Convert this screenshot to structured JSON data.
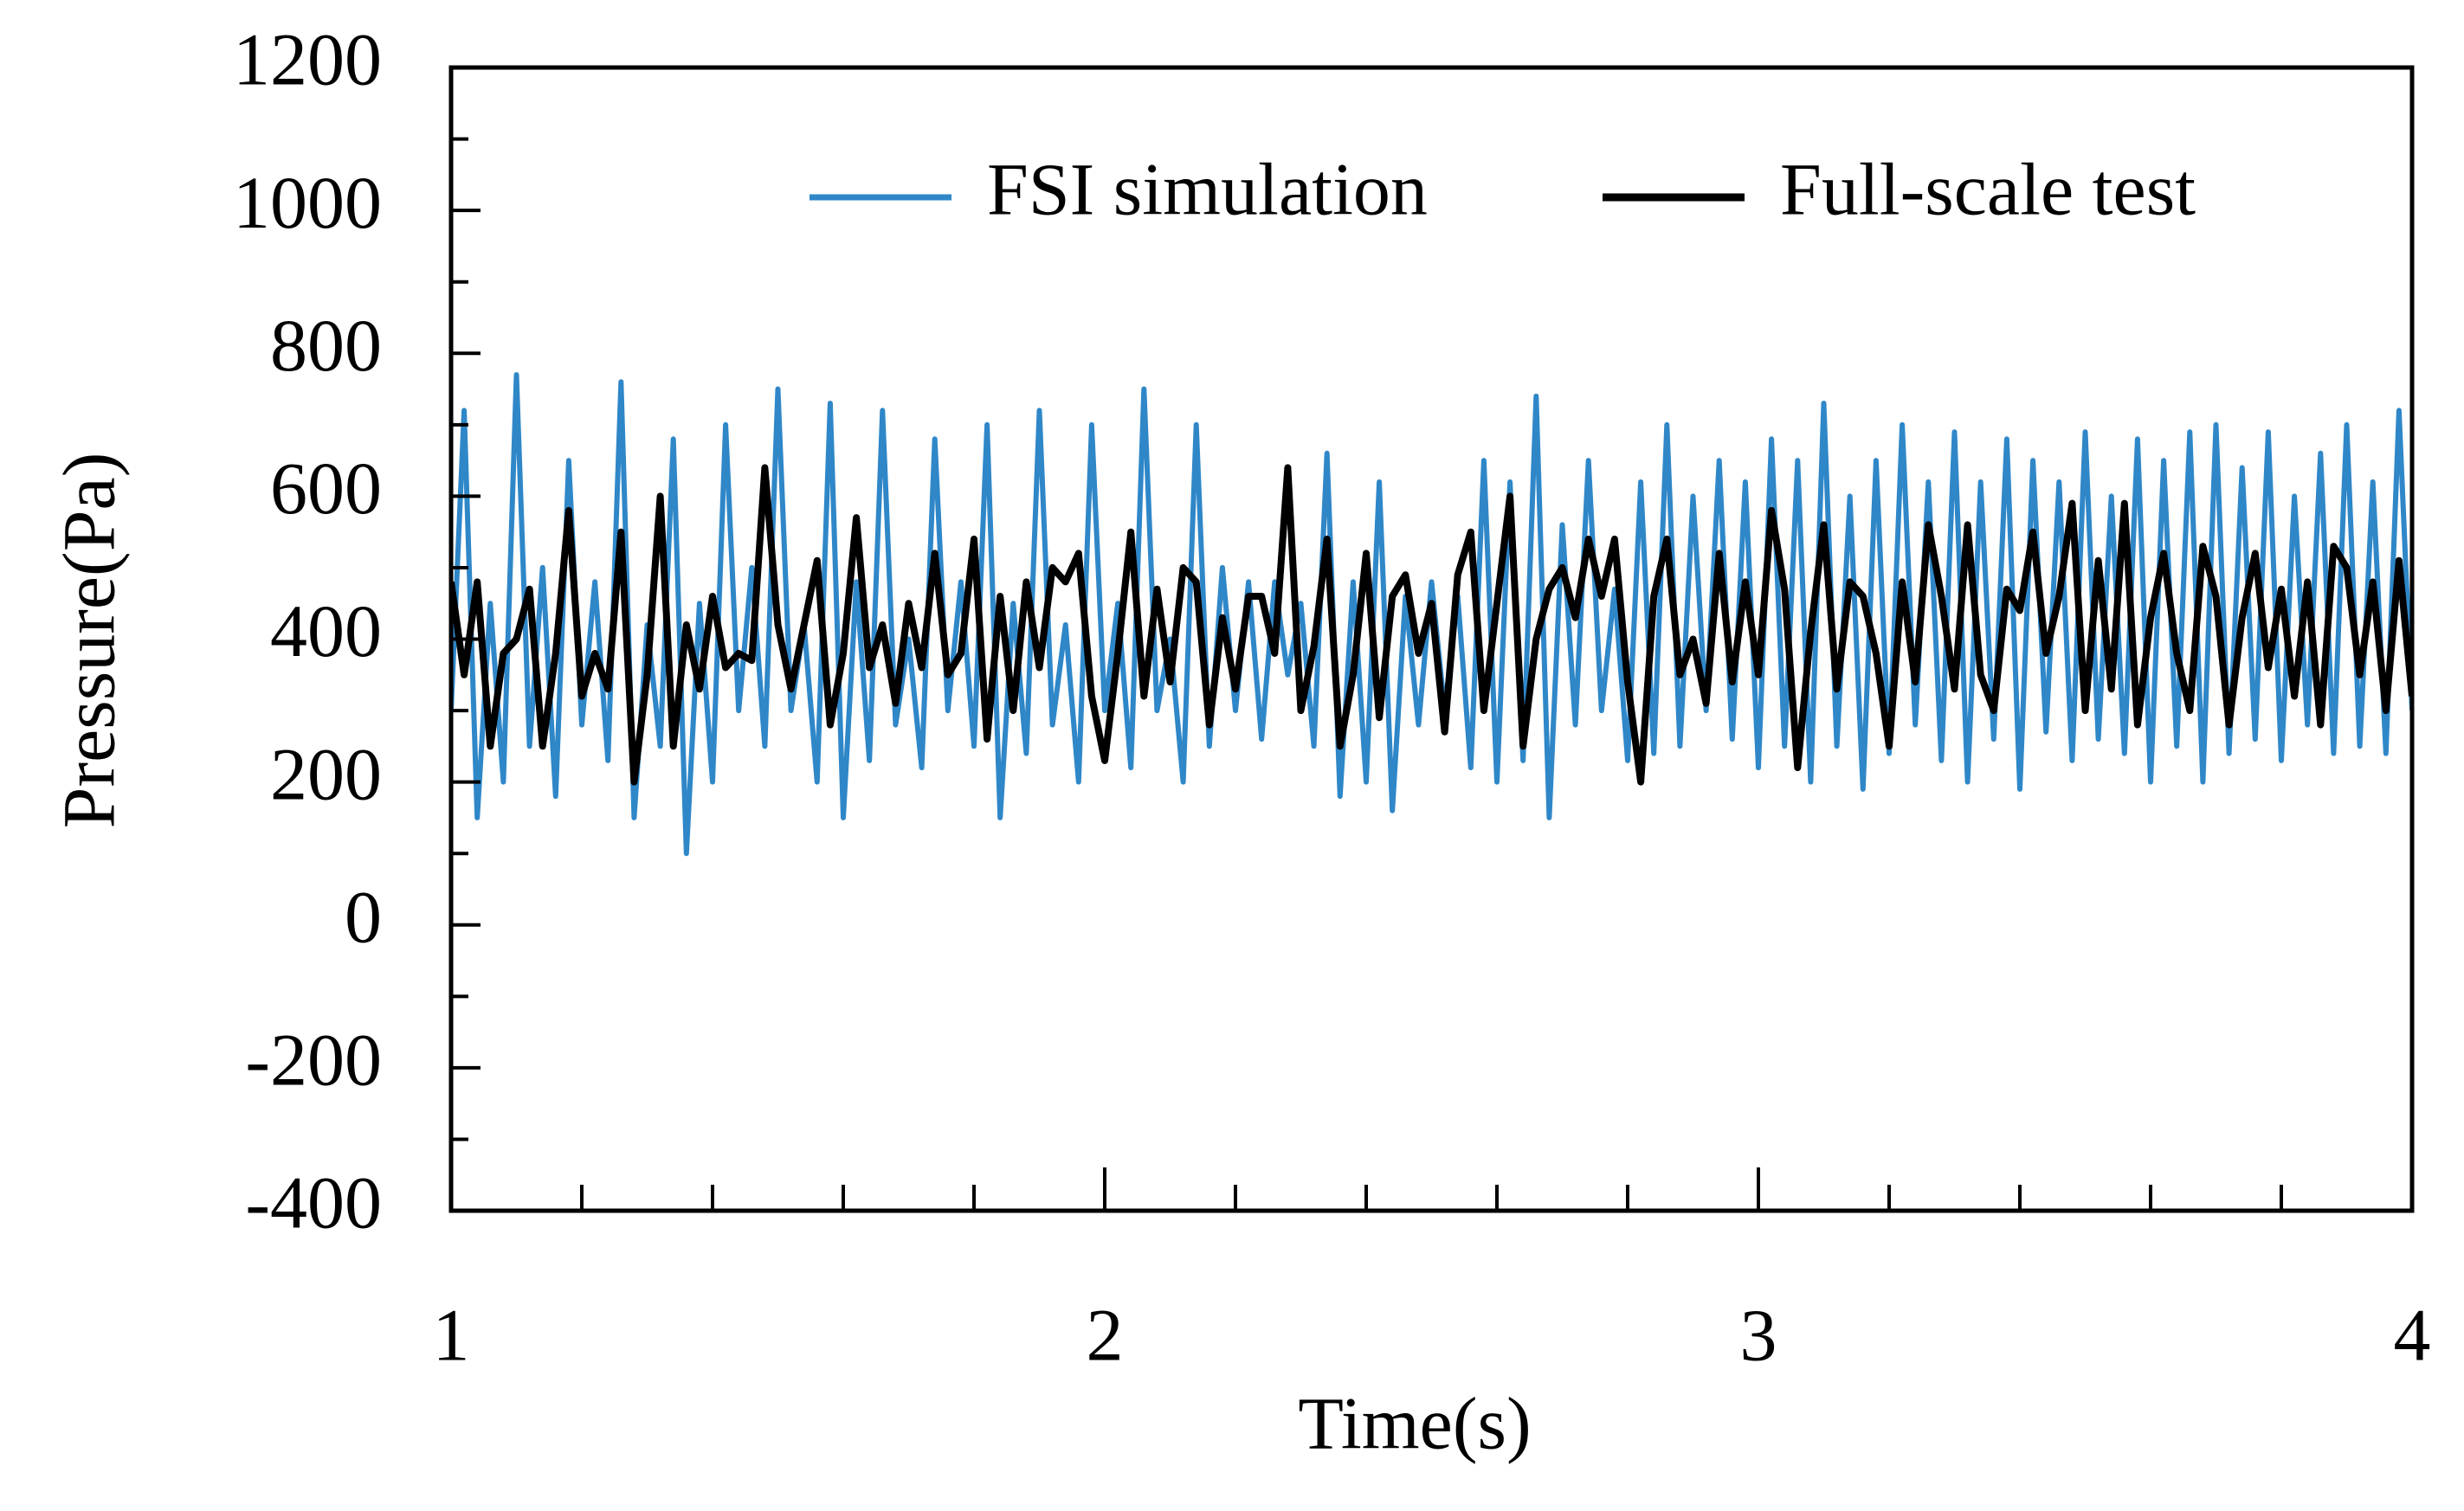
{
  "chart_data": {
    "type": "line",
    "xlabel": "Time(s)",
    "ylabel": "Pressure(Pa)",
    "xlim": [
      1,
      4
    ],
    "xticks": [
      1,
      2,
      3,
      4
    ],
    "ylim": [
      -400,
      1200
    ],
    "yticks": [
      -400,
      -200,
      0,
      200,
      400,
      600,
      800,
      1000,
      1200
    ],
    "legend": "upper right",
    "x": [
      1.0,
      1.02,
      1.04,
      1.06,
      1.08,
      1.1,
      1.12,
      1.14,
      1.16,
      1.18,
      1.2,
      1.22,
      1.24,
      1.26,
      1.28,
      1.3,
      1.32,
      1.34,
      1.36,
      1.38,
      1.4,
      1.42,
      1.44,
      1.46,
      1.48,
      1.5,
      1.52,
      1.54,
      1.56,
      1.58,
      1.6,
      1.62,
      1.64,
      1.66,
      1.68,
      1.7,
      1.72,
      1.74,
      1.76,
      1.78,
      1.8,
      1.82,
      1.84,
      1.86,
      1.88,
      1.9,
      1.92,
      1.94,
      1.96,
      1.98,
      2.0,
      2.02,
      2.04,
      2.06,
      2.08,
      2.1,
      2.12,
      2.14,
      2.16,
      2.18,
      2.2,
      2.22,
      2.24,
      2.26,
      2.28,
      2.3,
      2.32,
      2.34,
      2.36,
      2.38,
      2.4,
      2.42,
      2.44,
      2.46,
      2.48,
      2.5,
      2.52,
      2.54,
      2.56,
      2.58,
      2.6,
      2.62,
      2.64,
      2.66,
      2.68,
      2.7,
      2.72,
      2.74,
      2.76,
      2.78,
      2.8,
      2.82,
      2.84,
      2.86,
      2.88,
      2.9,
      2.92,
      2.94,
      2.96,
      2.98,
      3.0,
      3.02,
      3.04,
      3.06,
      3.08,
      3.1,
      3.12,
      3.14,
      3.16,
      3.18,
      3.2,
      3.22,
      3.24,
      3.26,
      3.28,
      3.3,
      3.32,
      3.34,
      3.36,
      3.38,
      3.4,
      3.42,
      3.44,
      3.46,
      3.48,
      3.5,
      3.52,
      3.54,
      3.56,
      3.58,
      3.6,
      3.62,
      3.64,
      3.66,
      3.68,
      3.7,
      3.72,
      3.74,
      3.76,
      3.78,
      3.8,
      3.82,
      3.84,
      3.86,
      3.88,
      3.9,
      3.92,
      3.94,
      3.96,
      3.98,
      4.0
    ],
    "series": [
      {
        "name": "FSI simulation",
        "color": "#2f87c8",
        "values": [
          300,
          720,
          150,
          450,
          200,
          770,
          250,
          500,
          180,
          650,
          280,
          480,
          230,
          760,
          150,
          420,
          250,
          680,
          100,
          450,
          200,
          700,
          300,
          500,
          250,
          750,
          300,
          420,
          200,
          730,
          150,
          480,
          230,
          720,
          280,
          400,
          220,
          680,
          300,
          480,
          250,
          700,
          150,
          450,
          240,
          720,
          280,
          420,
          200,
          700,
          300,
          450,
          220,
          750,
          300,
          400,
          200,
          700,
          250,
          500,
          300,
          480,
          260,
          480,
          350,
          450,
          250,
          660,
          180,
          480,
          200,
          620,
          160,
          460,
          280,
          480,
          300,
          460,
          220,
          650,
          200,
          620,
          230,
          740,
          150,
          560,
          280,
          650,
          300,
          470,
          230,
          620,
          240,
          700,
          250,
          600,
          300,
          650,
          260,
          620,
          220,
          680,
          250,
          650,
          200,
          730,
          250,
          600,
          190,
          650,
          240,
          700,
          280,
          620,
          230,
          690,
          200,
          620,
          260,
          680,
          190,
          650,
          270,
          620,
          230,
          690,
          260,
          600,
          240,
          680,
          200,
          650,
          250,
          690,
          200,
          700,
          240,
          640,
          260,
          690,
          230,
          600,
          280,
          660,
          240,
          700,
          250,
          620,
          240,
          720,
          300
        ]
      },
      {
        "name": "Full-scale test",
        "color": "#000000",
        "values": [
          480,
          350,
          480,
          250,
          380,
          400,
          470,
          250,
          380,
          580,
          320,
          380,
          330,
          550,
          200,
          350,
          600,
          250,
          420,
          330,
          460,
          360,
          380,
          370,
          640,
          420,
          330,
          420,
          510,
          280,
          380,
          570,
          360,
          420,
          310,
          450,
          360,
          520,
          350,
          380,
          540,
          260,
          460,
          300,
          480,
          360,
          500,
          480,
          520,
          320,
          230,
          380,
          550,
          320,
          470,
          340,
          500,
          480,
          280,
          430,
          330,
          460,
          460,
          380,
          640,
          300,
          390,
          540,
          250,
          350,
          520,
          290,
          460,
          490,
          380,
          450,
          270,
          490,
          550,
          300,
          450,
          600,
          250,
          400,
          470,
          500,
          430,
          540,
          460,
          540,
          340,
          200,
          460,
          540,
          350,
          400,
          310,
          520,
          340,
          480,
          350,
          580,
          470,
          220,
          410,
          560,
          330,
          480,
          460,
          380,
          250,
          480,
          340,
          560,
          460,
          330,
          560,
          350,
          300,
          470,
          440,
          550,
          380,
          460,
          590,
          300,
          510,
          330,
          590,
          280,
          430,
          520,
          380,
          300,
          530,
          460,
          280,
          430,
          520,
          360,
          470,
          320,
          480,
          280,
          530,
          500,
          350,
          480,
          300,
          510,
          320
        ]
      }
    ]
  }
}
